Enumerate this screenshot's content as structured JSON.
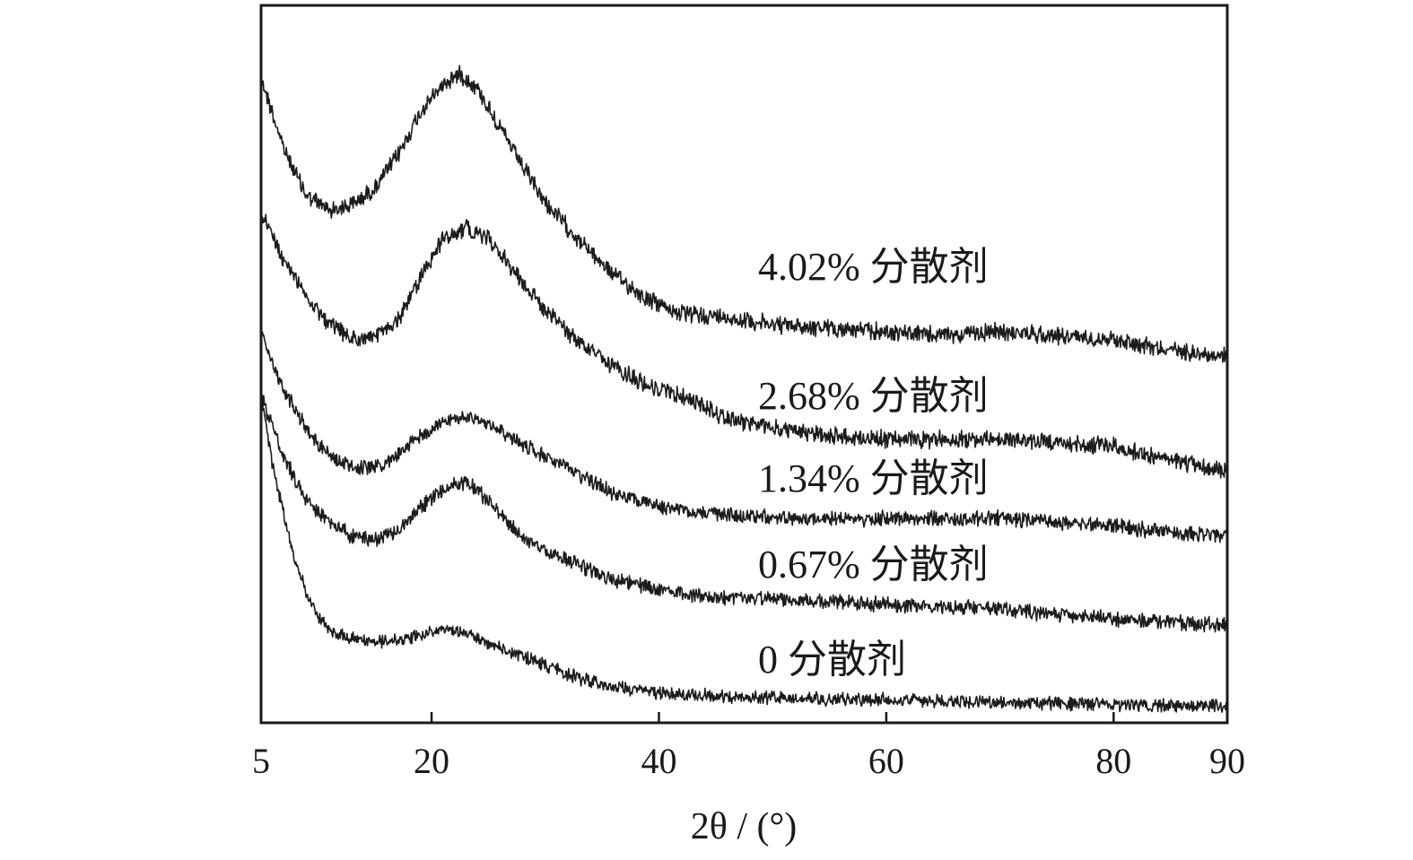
{
  "chart_data": {
    "type": "line",
    "title": "",
    "xlabel": "2θ / (°)",
    "ylabel": "",
    "xlim": [
      5,
      90
    ],
    "y_ticks_shown": false,
    "grid": false,
    "x_ticks": [
      5,
      20,
      40,
      60,
      80,
      90
    ],
    "series": [
      {
        "name": "4.02% 分散剂",
        "points": [
          [
            5,
            0.9
          ],
          [
            7,
            0.8
          ],
          [
            9,
            0.735
          ],
          [
            11,
            0.715
          ],
          [
            13,
            0.722
          ],
          [
            15,
            0.745
          ],
          [
            17,
            0.79
          ],
          [
            19,
            0.85
          ],
          [
            21,
            0.89
          ],
          [
            22.5,
            0.905
          ],
          [
            24,
            0.885
          ],
          [
            26,
            0.83
          ],
          [
            28,
            0.775
          ],
          [
            30,
            0.725
          ],
          [
            33,
            0.672
          ],
          [
            36,
            0.625
          ],
          [
            39,
            0.59
          ],
          [
            42,
            0.57
          ],
          [
            46,
            0.565
          ],
          [
            50,
            0.555
          ],
          [
            55,
            0.55
          ],
          [
            60,
            0.545
          ],
          [
            65,
            0.54
          ],
          [
            70,
            0.545
          ],
          [
            75,
            0.54
          ],
          [
            80,
            0.535
          ],
          [
            85,
            0.52
          ],
          [
            90,
            0.51
          ]
        ]
      },
      {
        "name": "2.68% 分散剂",
        "points": [
          [
            5,
            0.71
          ],
          [
            7,
            0.645
          ],
          [
            9,
            0.595
          ],
          [
            11,
            0.555
          ],
          [
            13,
            0.535
          ],
          [
            15,
            0.537
          ],
          [
            17,
            0.56
          ],
          [
            19,
            0.62
          ],
          [
            21,
            0.675
          ],
          [
            23,
            0.69
          ],
          [
            25,
            0.675
          ],
          [
            27,
            0.635
          ],
          [
            30,
            0.575
          ],
          [
            33,
            0.53
          ],
          [
            36,
            0.495
          ],
          [
            39,
            0.47
          ],
          [
            42,
            0.455
          ],
          [
            46,
            0.425
          ],
          [
            50,
            0.41
          ],
          [
            55,
            0.4
          ],
          [
            60,
            0.395
          ],
          [
            65,
            0.395
          ],
          [
            70,
            0.395
          ],
          [
            75,
            0.39
          ],
          [
            80,
            0.385
          ],
          [
            85,
            0.365
          ],
          [
            90,
            0.35
          ]
        ]
      },
      {
        "name": "1.34% 分散剂",
        "points": [
          [
            5,
            0.54
          ],
          [
            7,
            0.465
          ],
          [
            9,
            0.41
          ],
          [
            11,
            0.373
          ],
          [
            13,
            0.355
          ],
          [
            15,
            0.355
          ],
          [
            17,
            0.372
          ],
          [
            19,
            0.4
          ],
          [
            21,
            0.42
          ],
          [
            23,
            0.425
          ],
          [
            25,
            0.418
          ],
          [
            27,
            0.398
          ],
          [
            30,
            0.37
          ],
          [
            33,
            0.345
          ],
          [
            36,
            0.32
          ],
          [
            40,
            0.3
          ],
          [
            45,
            0.292
          ],
          [
            50,
            0.285
          ],
          [
            55,
            0.285
          ],
          [
            60,
            0.285
          ],
          [
            65,
            0.285
          ],
          [
            70,
            0.285
          ],
          [
            75,
            0.28
          ],
          [
            80,
            0.275
          ],
          [
            85,
            0.265
          ],
          [
            90,
            0.26
          ]
        ]
      },
      {
        "name": "0.67% 分散剂",
        "points": [
          [
            5,
            0.455
          ],
          [
            7,
            0.37
          ],
          [
            9,
            0.31
          ],
          [
            11,
            0.28
          ],
          [
            13,
            0.26
          ],
          [
            15,
            0.255
          ],
          [
            17,
            0.268
          ],
          [
            19,
            0.3
          ],
          [
            21,
            0.325
          ],
          [
            22.5,
            0.335
          ],
          [
            24,
            0.325
          ],
          [
            26,
            0.29
          ],
          [
            28,
            0.26
          ],
          [
            30,
            0.24
          ],
          [
            33,
            0.22
          ],
          [
            36,
            0.2
          ],
          [
            40,
            0.185
          ],
          [
            45,
            0.175
          ],
          [
            50,
            0.172
          ],
          [
            55,
            0.168
          ],
          [
            60,
            0.165
          ],
          [
            65,
            0.162
          ],
          [
            70,
            0.158
          ],
          [
            75,
            0.152
          ],
          [
            80,
            0.145
          ],
          [
            85,
            0.14
          ],
          [
            90,
            0.135
          ]
        ]
      },
      {
        "name": "0 分散剂",
        "points": [
          [
            5,
            0.455
          ],
          [
            6,
            0.36
          ],
          [
            7,
            0.29
          ],
          [
            8,
            0.225
          ],
          [
            9,
            0.18
          ],
          [
            10,
            0.148
          ],
          [
            11,
            0.128
          ],
          [
            13,
            0.118
          ],
          [
            15,
            0.112
          ],
          [
            17,
            0.115
          ],
          [
            19,
            0.123
          ],
          [
            21,
            0.13
          ],
          [
            23,
            0.125
          ],
          [
            25,
            0.112
          ],
          [
            27,
            0.098
          ],
          [
            30,
            0.08
          ],
          [
            33,
            0.062
          ],
          [
            36,
            0.05
          ],
          [
            40,
            0.042
          ],
          [
            45,
            0.037
          ],
          [
            50,
            0.035
          ],
          [
            55,
            0.033
          ],
          [
            60,
            0.032
          ],
          [
            65,
            0.03
          ],
          [
            70,
            0.028
          ],
          [
            75,
            0.027
          ],
          [
            80,
            0.026
          ],
          [
            85,
            0.024
          ],
          [
            90,
            0.023
          ]
        ]
      }
    ]
  }
}
